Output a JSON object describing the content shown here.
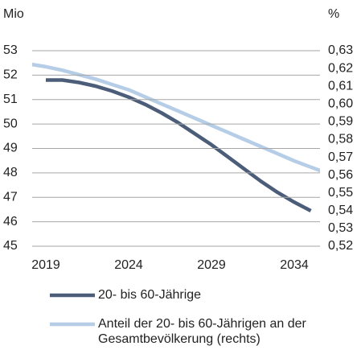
{
  "chart_data": {
    "type": "line",
    "ylabel": "Mio",
    "y2label": "%",
    "xlim": [
      2018,
      2036
    ],
    "xticks": [
      2019,
      2024,
      2029,
      2034
    ],
    "ylim": [
      45,
      53
    ],
    "yticks": [
      45,
      46,
      47,
      48,
      49,
      50,
      51,
      52,
      53
    ],
    "y2lim": [
      0.52,
      0.63
    ],
    "y2ticks": [
      {
        "value": 0.52,
        "label": "0,52"
      },
      {
        "value": 0.53,
        "label": "0,53"
      },
      {
        "value": 0.54,
        "label": "0,54"
      },
      {
        "value": 0.55,
        "label": "0,55"
      },
      {
        "value": 0.56,
        "label": "0,56"
      },
      {
        "value": 0.57,
        "label": "0,57"
      },
      {
        "value": 0.58,
        "label": "0,58"
      },
      {
        "value": 0.59,
        "label": "0,59"
      },
      {
        "value": 0.6,
        "label": "0,60"
      },
      {
        "value": 0.61,
        "label": "0,61"
      },
      {
        "value": 0.62,
        "label": "0,62"
      },
      {
        "value": 0.63,
        "label": "0,63"
      }
    ],
    "grid": true,
    "series": [
      {
        "name": "20- bis 60-Jährige",
        "color": "#4b5d78",
        "x": [
          2019,
          2020,
          2021,
          2022,
          2023,
          2024,
          2025,
          2026,
          2027,
          2028,
          2029,
          2030,
          2031,
          2032,
          2033,
          2034,
          2035
        ],
        "values": [
          51.8,
          51.8,
          51.7,
          51.55,
          51.35,
          51.1,
          50.8,
          50.45,
          50.05,
          49.6,
          49.15,
          48.65,
          48.15,
          47.65,
          47.2,
          46.8,
          46.45
        ]
      },
      {
        "name": "Anteil der 20- bis 60-Jährigen an der Gesamtbevölkerung (rechts)",
        "color": "#b5cde6",
        "axis": "y2",
        "x": [
          2018,
          2019,
          2020,
          2021,
          2022,
          2023,
          2024,
          2025,
          2026,
          2027,
          2028,
          2029,
          2030,
          2031,
          2032,
          2033,
          2034,
          2035,
          2036
        ],
        "values": [
          0.6225,
          0.621,
          0.619,
          0.6165,
          0.614,
          0.611,
          0.608,
          0.604,
          0.6,
          0.596,
          0.592,
          0.588,
          0.584,
          0.58,
          0.576,
          0.572,
          0.568,
          0.5645,
          0.561
        ]
      }
    ]
  }
}
